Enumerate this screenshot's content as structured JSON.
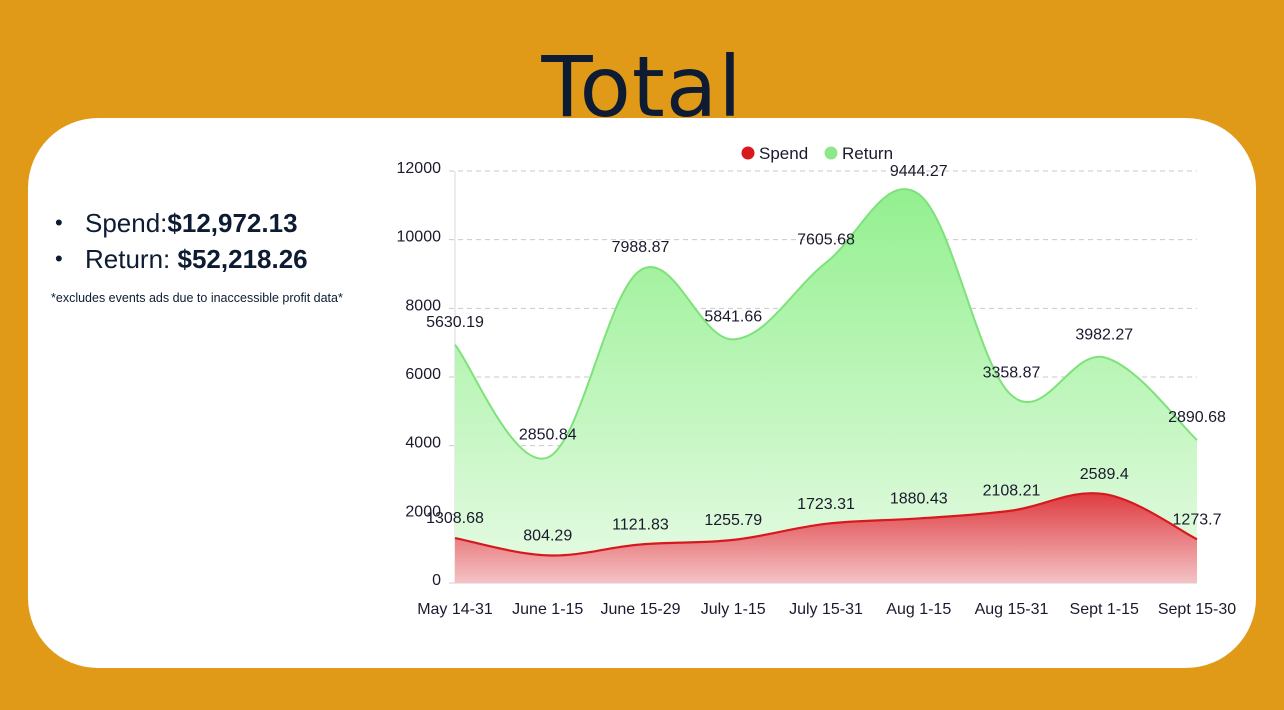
{
  "page": {
    "title": "Total",
    "summary": {
      "spend_label": "Spend:",
      "spend_value": "$12,972.13",
      "return_label": "Return: ",
      "return_value": "$52,218.26"
    },
    "note": "*excludes events ads due to inaccessible profit data*"
  },
  "colors": {
    "background": "#e09a17",
    "spend": "#d7191e",
    "return": "#8de88a"
  },
  "chart_data": {
    "type": "area",
    "title": "",
    "legend": "top-center",
    "categories": [
      "May 14-31",
      "June 1-15",
      "June 15-29",
      "July 1-15",
      "July 15-31",
      "Aug 1-15",
      "Aug 15-31",
      "Sept 1-15",
      "Sept 15-30"
    ],
    "ylim": [
      0,
      12000
    ],
    "yticks": [
      0,
      2000,
      4000,
      6000,
      8000,
      10000,
      12000
    ],
    "grid": true,
    "stacked": true,
    "series": [
      {
        "name": "Spend",
        "color": "#d7191e",
        "values": [
          1308.68,
          804.29,
          1121.83,
          1255.79,
          1723.31,
          1880.43,
          2108.21,
          2589.4,
          1273.7
        ]
      },
      {
        "name": "Return",
        "color": "#8de88a",
        "values": [
          5630.19,
          2850.84,
          7988.87,
          5841.66,
          7605.68,
          9444.27,
          3358.87,
          3982.27,
          2890.68
        ]
      }
    ],
    "data_labels": {
      "Spend": [
        "1308.68",
        "804.29",
        "1121.83",
        "1255.79",
        "1723.31",
        "1880.43",
        "2108.21",
        "2589.4",
        "1273.7"
      ],
      "Return": [
        "5630.19",
        "2850.84",
        "7988.87",
        "5841.66",
        "7605.68",
        "9444.27",
        "3358.87",
        "3982.27",
        "2890.68"
      ]
    }
  }
}
